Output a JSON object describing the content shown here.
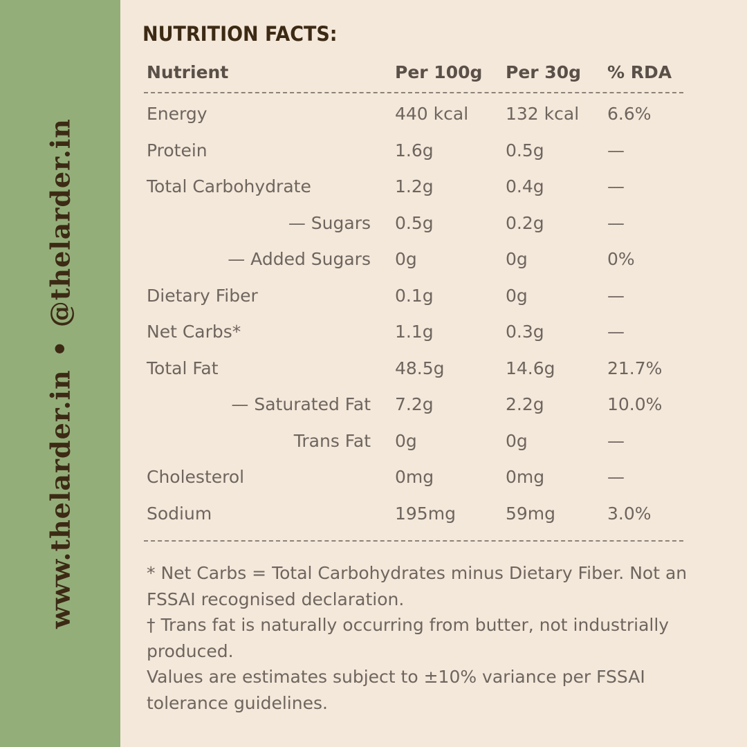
{
  "side_label": {
    "website": "www.thelarder.in",
    "separator": "•",
    "handle": "@thelarder.in"
  },
  "title": "NUTRITION FACTS:",
  "table": {
    "headers": {
      "nutrient": "Nutrient",
      "per_100g": "Per 100g",
      "per_30g": "Per 30g",
      "rda": "% RDA"
    },
    "rows": [
      {
        "name": "Energy",
        "per_100g": "440 kcal",
        "per_30g": "132 kcal",
        "rda": "6.6%"
      },
      {
        "name": "Protein",
        "per_100g": "1.6g",
        "per_30g": "0.5g",
        "rda": "—"
      },
      {
        "name": "Total Carbohydrate",
        "per_100g": "1.2g",
        "per_30g": "0.4g",
        "rda": "—"
      },
      {
        "name": "— Sugars",
        "per_100g": "0.5g",
        "per_30g": "0.2g",
        "rda": "—"
      },
      {
        "name": "— Added Sugars",
        "per_100g": "0g",
        "per_30g": "0g",
        "rda": "0%"
      },
      {
        "name": "Dietary Fiber",
        "per_100g": "0.1g",
        "per_30g": "0g",
        "rda": "—"
      },
      {
        "name": "Net Carbs*",
        "per_100g": "1.1g",
        "per_30g": "0.3g",
        "rda": "—"
      },
      {
        "name": "Total Fat",
        "per_100g": "48.5g",
        "per_30g": "14.6g",
        "rda": "21.7%"
      },
      {
        "name": "— Saturated Fat",
        "per_100g": "7.2g",
        "per_30g": "2.2g",
        "rda": "10.0%"
      },
      {
        "name": "Trans Fat",
        "per_100g": "0g",
        "per_30g": "0g",
        "rda": "—"
      },
      {
        "name": "Cholesterol",
        "per_100g": "0mg",
        "per_30g": "0mg",
        "rda": "—"
      },
      {
        "name": "Sodium",
        "per_100g": "195mg",
        "per_30g": "59mg",
        "rda": "3.0%"
      }
    ]
  },
  "notes": [
    "* Net Carbs = Total Carbohydrates minus Dietary Fiber. Not an FSSAI recognised declaration.",
    "† Trans fat is naturally occurring from butter, not industrially produced.",
    "Values are estimates subject to ±10% variance per FSSAI tolerance guidelines."
  ],
  "colors": {
    "background": "#f4e8da",
    "sidebar": "#94ae7a",
    "heading": "#3c2a14",
    "body_text": "#6e655e"
  }
}
